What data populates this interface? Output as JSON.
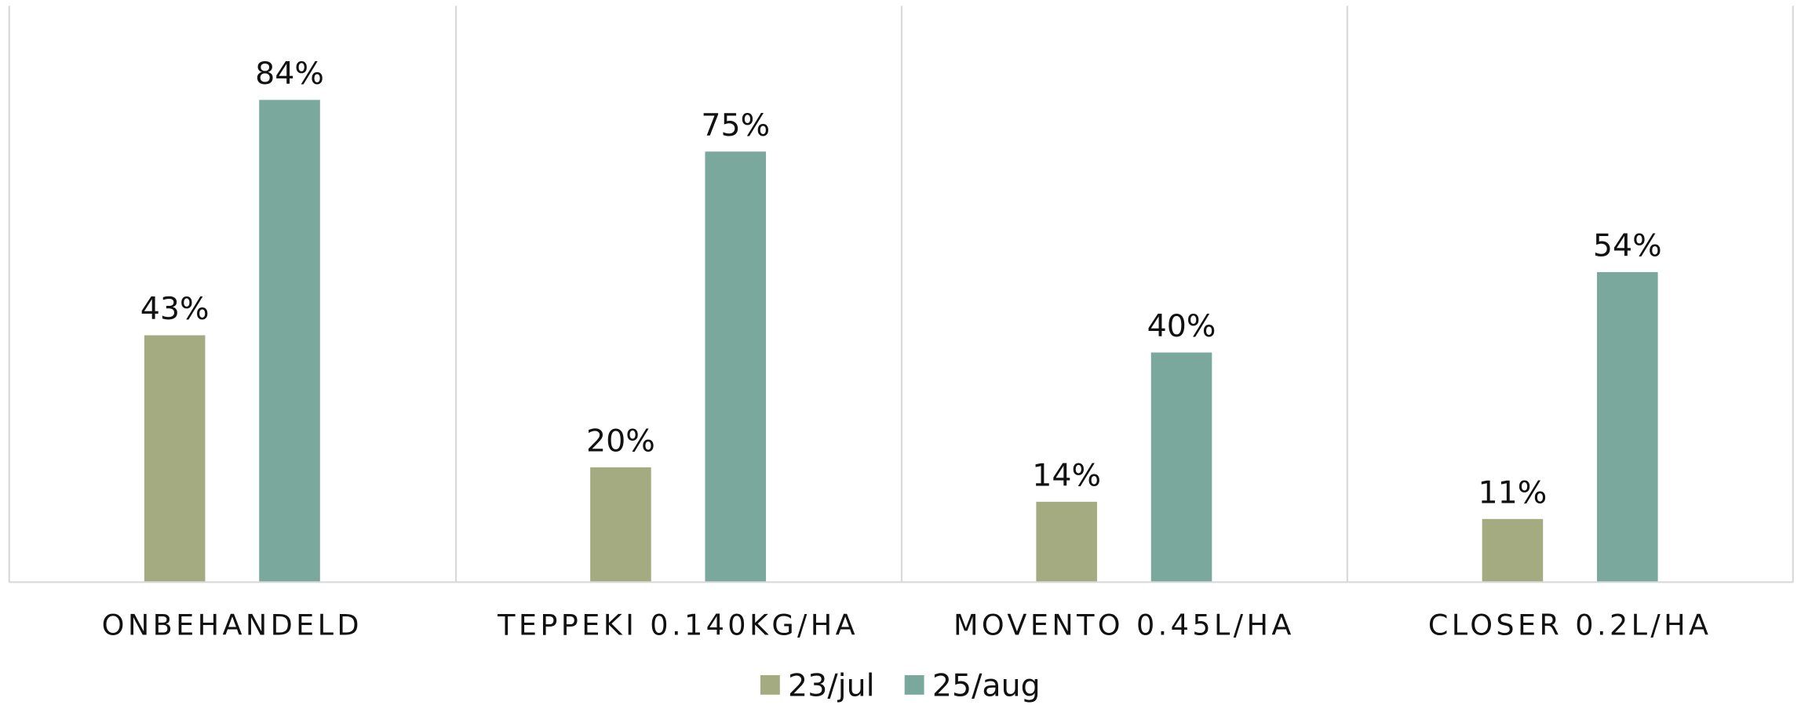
{
  "chart_data": {
    "type": "bar",
    "categories": [
      "ONBEHANDELD",
      "TEPPEKI 0.140KG/HA",
      "MOVENTO 0.45L/HA",
      "CLOSER 0.2L/HA"
    ],
    "series": [
      {
        "name": "23/jul",
        "color": "#a5ab80",
        "values": [
          43,
          20,
          14,
          11
        ],
        "value_labels": [
          "43%",
          "20%",
          "14%",
          "11%"
        ]
      },
      {
        "name": "25/aug",
        "color": "#7ba89c",
        "values": [
          84,
          75,
          40,
          54
        ],
        "value_labels": [
          "84%",
          "75%",
          "40%",
          "54%"
        ]
      }
    ],
    "ylim": [
      0,
      100
    ],
    "legend": "bottom"
  }
}
